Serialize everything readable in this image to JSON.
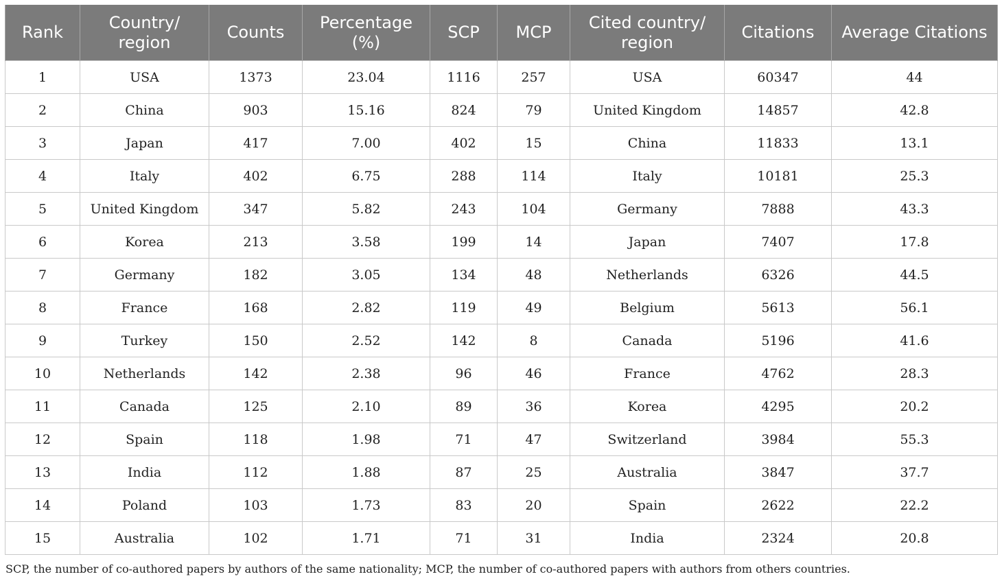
{
  "table": {
    "headers": [
      "Rank",
      "Country/\nregion",
      "Counts",
      "Percentage\n(%)",
      "SCP",
      "MCP",
      "Cited country/\nregion",
      "Citations",
      "Average Citations"
    ],
    "rows": [
      [
        "1",
        "USA",
        "1373",
        "23.04",
        "1116",
        "257",
        "USA",
        "60347",
        "44"
      ],
      [
        "2",
        "China",
        "903",
        "15.16",
        "824",
        "79",
        "United Kingdom",
        "14857",
        "42.8"
      ],
      [
        "3",
        "Japan",
        "417",
        "7.00",
        "402",
        "15",
        "China",
        "11833",
        "13.1"
      ],
      [
        "4",
        "Italy",
        "402",
        "6.75",
        "288",
        "114",
        "Italy",
        "10181",
        "25.3"
      ],
      [
        "5",
        "United Kingdom",
        "347",
        "5.82",
        "243",
        "104",
        "Germany",
        "7888",
        "43.3"
      ],
      [
        "6",
        "Korea",
        "213",
        "3.58",
        "199",
        "14",
        "Japan",
        "7407",
        "17.8"
      ],
      [
        "7",
        "Germany",
        "182",
        "3.05",
        "134",
        "48",
        "Netherlands",
        "6326",
        "44.5"
      ],
      [
        "8",
        "France",
        "168",
        "2.82",
        "119",
        "49",
        "Belgium",
        "5613",
        "56.1"
      ],
      [
        "9",
        "Turkey",
        "150",
        "2.52",
        "142",
        "8",
        "Canada",
        "5196",
        "41.6"
      ],
      [
        "10",
        "Netherlands",
        "142",
        "2.38",
        "96",
        "46",
        "France",
        "4762",
        "28.3"
      ],
      [
        "11",
        "Canada",
        "125",
        "2.10",
        "89",
        "36",
        "Korea",
        "4295",
        "20.2"
      ],
      [
        "12",
        "Spain",
        "118",
        "1.98",
        "71",
        "47",
        "Switzerland",
        "3984",
        "55.3"
      ],
      [
        "13",
        "India",
        "112",
        "1.88",
        "87",
        "25",
        "Australia",
        "3847",
        "37.7"
      ],
      [
        "14",
        "Poland",
        "103",
        "1.73",
        "83",
        "20",
        "Spain",
        "2622",
        "22.2"
      ],
      [
        "15",
        "Australia",
        "102",
        "1.71",
        "71",
        "31",
        "India",
        "2324",
        "20.8"
      ]
    ]
  },
  "footnote": "SCP, the number of co-authored papers by authors of the same nationality; MCP, the number of co-authored papers with authors from others countries."
}
